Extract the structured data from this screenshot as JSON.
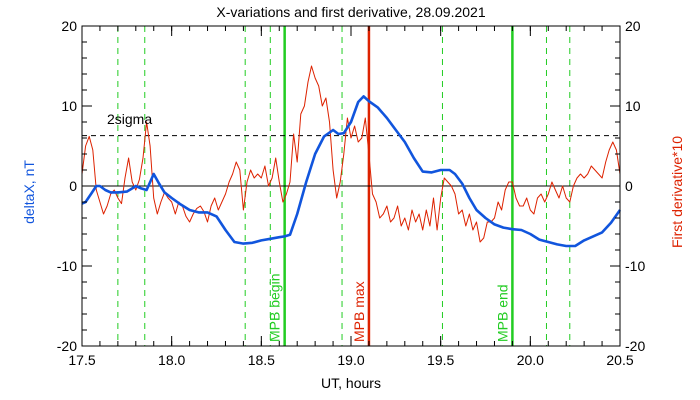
{
  "chart_data": {
    "type": "line",
    "title": "X-variations and first derivative, 28.09.2021",
    "xlabel": "UT, hours",
    "ylabel_left": "deltaX, nT",
    "ylabel_right": "First derivative*10",
    "xlim": [
      17.5,
      20.5
    ],
    "ylim": [
      -20,
      20
    ],
    "x_ticks": [
      {
        "value": 17.5,
        "label": "17.5"
      },
      {
        "value": 18.0,
        "label": "18.0"
      },
      {
        "value": 18.5,
        "label": "18.5"
      },
      {
        "value": 19.0,
        "label": "19.0"
      },
      {
        "value": 19.5,
        "label": "19.5"
      },
      {
        "value": 20.0,
        "label": "20.0"
      },
      {
        "value": 20.5,
        "label": "20.5"
      }
    ],
    "y_ticks": [
      {
        "value": 20,
        "label": "20"
      },
      {
        "value": 10,
        "label": "10"
      },
      {
        "value": 0,
        "label": "0"
      },
      {
        "value": -10,
        "label": "-10"
      },
      {
        "value": -20,
        "label": "-20"
      }
    ],
    "threshold": {
      "value": 6.3,
      "label": "2sigma",
      "color": "#000000"
    },
    "zero_line": 0,
    "vertical_markers": [
      {
        "x": 17.7,
        "style": "dashed",
        "color": "#22cc22"
      },
      {
        "x": 17.85,
        "style": "dashed",
        "color": "#22cc22"
      },
      {
        "x": 18.41,
        "style": "dashed",
        "color": "#22cc22"
      },
      {
        "x": 18.55,
        "style": "dashed",
        "color": "#22cc22"
      },
      {
        "x": 18.63,
        "style": "solid",
        "color": "#22cc22",
        "label": "MPB begin"
      },
      {
        "x": 18.95,
        "style": "dashed",
        "color": "#22cc22"
      },
      {
        "x": 19.1,
        "style": "solid",
        "color": "#dd2200",
        "label": "MPB max"
      },
      {
        "x": 19.51,
        "style": "dashed",
        "color": "#22cc22"
      },
      {
        "x": 19.9,
        "style": "solid",
        "color": "#22cc22",
        "label": "MPB end"
      },
      {
        "x": 20.09,
        "style": "dashed",
        "color": "#22cc22"
      },
      {
        "x": 20.22,
        "style": "dashed",
        "color": "#22cc22"
      }
    ],
    "series": [
      {
        "name": "deltaX, nT",
        "axis": "left",
        "color": "#1155dd",
        "x": [
          17.5,
          17.52,
          17.55,
          17.58,
          17.6,
          17.63,
          17.66,
          17.7,
          17.75,
          17.78,
          17.8,
          17.83,
          17.86,
          17.9,
          17.93,
          17.96,
          18.0,
          18.05,
          18.1,
          18.15,
          18.2,
          18.25,
          18.3,
          18.35,
          18.4,
          18.45,
          18.5,
          18.55,
          18.6,
          18.63,
          18.66,
          18.7,
          18.75,
          18.8,
          18.85,
          18.9,
          18.93,
          18.96,
          19.0,
          19.04,
          19.07,
          19.1,
          19.15,
          19.2,
          19.25,
          19.3,
          19.35,
          19.4,
          19.45,
          19.5,
          19.55,
          19.58,
          19.62,
          19.66,
          19.7,
          19.75,
          19.8,
          19.85,
          19.9,
          19.95,
          20.0,
          20.05,
          20.1,
          20.15,
          20.2,
          20.25,
          20.3,
          20.35,
          20.4,
          20.45,
          20.5
        ],
        "values": [
          -2.2,
          -2.0,
          -1.0,
          0.0,
          0.0,
          -0.5,
          -0.8,
          -0.8,
          -0.7,
          -0.3,
          0.0,
          -0.3,
          -0.5,
          1.5,
          0.3,
          -0.8,
          -1.5,
          -2.3,
          -3.0,
          -3.3,
          -3.3,
          -3.8,
          -5.5,
          -7.0,
          -7.2,
          -7.1,
          -6.8,
          -6.6,
          -6.4,
          -6.3,
          -6.1,
          -3.5,
          0.5,
          4.0,
          6.2,
          7.0,
          6.5,
          6.6,
          8.0,
          10.5,
          11.2,
          10.6,
          9.8,
          8.5,
          7.0,
          5.5,
          3.5,
          1.8,
          1.7,
          2.0,
          2.0,
          1.5,
          0.3,
          -1.5,
          -3.0,
          -4.0,
          -4.8,
          -5.2,
          -5.4,
          -5.5,
          -6.0,
          -6.7,
          -7.0,
          -7.3,
          -7.5,
          -7.5,
          -6.8,
          -6.3,
          -5.8,
          -4.6,
          -3.0
        ]
      },
      {
        "name": "First derivative*10",
        "axis": "right",
        "color": "#dd2200",
        "x": [
          17.5,
          17.52,
          17.54,
          17.56,
          17.58,
          17.6,
          17.62,
          17.64,
          17.66,
          17.68,
          17.7,
          17.72,
          17.74,
          17.76,
          17.78,
          17.8,
          17.82,
          17.84,
          17.86,
          17.88,
          17.9,
          17.92,
          17.94,
          17.96,
          17.98,
          18.0,
          18.02,
          18.04,
          18.06,
          18.08,
          18.1,
          18.12,
          18.14,
          18.16,
          18.18,
          18.2,
          18.22,
          18.24,
          18.26,
          18.28,
          18.3,
          18.32,
          18.34,
          18.36,
          18.38,
          18.4,
          18.42,
          18.44,
          18.46,
          18.48,
          18.5,
          18.52,
          18.54,
          18.56,
          18.58,
          18.6,
          18.62,
          18.64,
          18.66,
          18.68,
          18.7,
          18.72,
          18.74,
          18.76,
          18.78,
          18.8,
          18.82,
          18.84,
          18.86,
          18.88,
          18.9,
          18.92,
          18.94,
          18.96,
          18.98,
          19.0,
          19.02,
          19.04,
          19.06,
          19.08,
          19.1,
          19.12,
          19.14,
          19.16,
          19.18,
          19.2,
          19.22,
          19.24,
          19.26,
          19.28,
          19.3,
          19.32,
          19.34,
          19.36,
          19.38,
          19.4,
          19.42,
          19.44,
          19.46,
          19.48,
          19.5,
          19.52,
          19.54,
          19.56,
          19.58,
          19.6,
          19.62,
          19.64,
          19.66,
          19.68,
          19.7,
          19.72,
          19.74,
          19.76,
          19.78,
          19.8,
          19.82,
          19.84,
          19.86,
          19.88,
          19.9,
          19.92,
          19.94,
          19.96,
          19.98,
          20.0,
          20.02,
          20.04,
          20.06,
          20.08,
          20.1,
          20.12,
          20.14,
          20.16,
          20.18,
          20.2,
          20.22,
          20.24,
          20.26,
          20.28,
          20.3,
          20.32,
          20.34,
          20.36,
          20.38,
          20.4,
          20.42,
          20.44,
          20.46,
          20.48,
          20.5
        ],
        "values": [
          1.5,
          5.0,
          6.2,
          4.5,
          -0.5,
          -2.0,
          -3.5,
          -2.5,
          -1.0,
          -0.5,
          -1.5,
          -2.2,
          1.0,
          3.5,
          0.5,
          -0.5,
          0.8,
          3.5,
          8.0,
          5.0,
          -1.5,
          -3.5,
          -2.0,
          -0.8,
          -1.5,
          -2.0,
          -3.5,
          -2.0,
          -2.5,
          -3.8,
          -4.5,
          -3.5,
          -2.8,
          -2.5,
          -3.2,
          -4.5,
          -2.5,
          -1.5,
          -3.0,
          -2.0,
          -1.0,
          0.5,
          1.5,
          3.0,
          2.0,
          -3.0,
          0.5,
          2.0,
          1.0,
          1.5,
          1.0,
          2.5,
          0.0,
          1.0,
          3.5,
          0.5,
          -2.0,
          -1.0,
          0.5,
          6.5,
          3.0,
          9.0,
          10.0,
          13.0,
          15.0,
          13.5,
          12.5,
          10.0,
          11.0,
          8.0,
          2.0,
          -1.5,
          0.5,
          4.0,
          8.5,
          6.0,
          7.5,
          5.5,
          6.0,
          8.5,
          4.0,
          -1.0,
          -2.0,
          -4.0,
          -3.5,
          -2.5,
          -4.5,
          -4.0,
          -2.5,
          -5.0,
          -4.0,
          -5.5,
          -3.0,
          -4.5,
          -3.5,
          -5.5,
          -3.0,
          -5.0,
          -1.5,
          -5.5,
          -1.5,
          1.0,
          0.5,
          0.0,
          -1.0,
          -3.5,
          -3.0,
          -5.0,
          -3.5,
          -5.5,
          -4.5,
          -7.0,
          -6.5,
          -4.5,
          -4.5,
          -4.0,
          -2.0,
          -3.0,
          -0.5,
          0.5,
          0.5,
          -1.5,
          -2.5,
          -2.5,
          -1.5,
          -3.0,
          -3.5,
          -1.5,
          -1.0,
          -2.0,
          -1.0,
          0.5,
          -0.5,
          -1.5,
          0.0,
          -1.5,
          -2.0,
          0.0,
          1.0,
          1.5,
          1.0,
          1.5,
          2.5,
          2.0,
          1.5,
          1.0,
          3.0,
          4.5,
          5.5,
          4.5,
          1.5
        ]
      }
    ]
  }
}
